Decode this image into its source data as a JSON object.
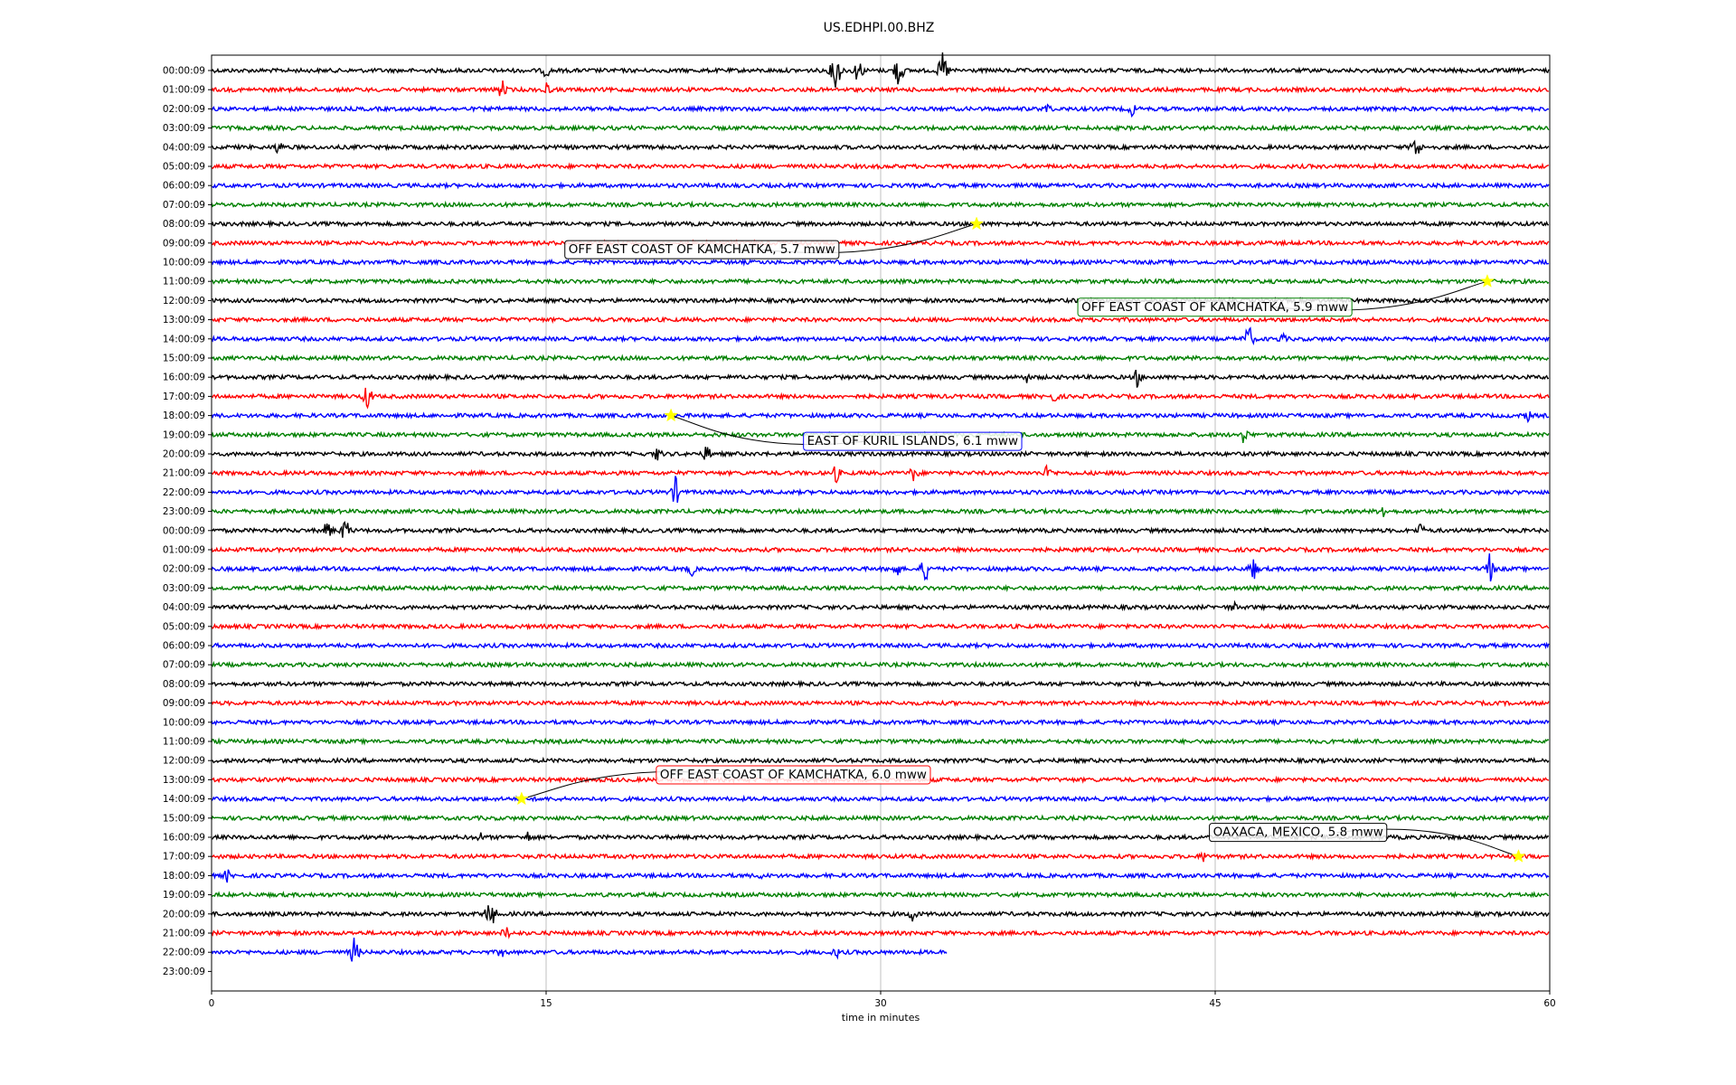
{
  "chart_data": {
    "type": "line",
    "title": "US.EDHPI.00.BHZ",
    "xlabel": "time in minutes",
    "ylabel": "",
    "xlim": [
      0,
      60
    ],
    "x_ticks": [
      0,
      15,
      30,
      45,
      60
    ],
    "grid": "vertical lines at x ticks",
    "trace_colors": [
      "#000000",
      "#ff0000",
      "#0000ff",
      "#008000"
    ],
    "rows": [
      "00:00:09",
      "01:00:09",
      "02:00:09",
      "03:00:09",
      "04:00:09",
      "05:00:09",
      "06:00:09",
      "07:00:09",
      "08:00:09",
      "09:00:09",
      "10:00:09",
      "11:00:09",
      "12:00:09",
      "13:00:09",
      "14:00:09",
      "15:00:09",
      "16:00:09",
      "17:00:09",
      "18:00:09",
      "19:00:09",
      "20:00:09",
      "21:00:09",
      "22:00:09",
      "23:00:09",
      "00:00:09",
      "01:00:09",
      "02:00:09",
      "03:00:09",
      "04:00:09",
      "05:00:09",
      "06:00:09",
      "07:00:09",
      "08:00:09",
      "09:00:09",
      "10:00:09",
      "11:00:09",
      "12:00:09",
      "13:00:09",
      "14:00:09",
      "15:00:09",
      "16:00:09",
      "17:00:09",
      "18:00:09",
      "19:00:09",
      "20:00:09",
      "21:00:09",
      "22:00:09",
      "23:00:09"
    ],
    "last_row_with_data": 46,
    "last_row_end_minute": 33,
    "bursts": [
      {
        "row": 0,
        "minute": 28,
        "amp": 1.6
      },
      {
        "row": 0,
        "minute": 29,
        "amp": 1.0
      },
      {
        "row": 0,
        "minute": 30.8,
        "amp": 1.3
      },
      {
        "row": 0,
        "minute": 32.8,
        "amp": 1.4
      },
      {
        "row": 0,
        "minute": 15,
        "amp": 0.6
      },
      {
        "row": 1,
        "minute": 13,
        "amp": 0.8
      },
      {
        "row": 1,
        "minute": 15,
        "amp": 0.6
      },
      {
        "row": 2,
        "minute": 37.5,
        "amp": 0.5
      },
      {
        "row": 2,
        "minute": 41.3,
        "amp": 0.6
      },
      {
        "row": 4,
        "minute": 3,
        "amp": 0.6
      },
      {
        "row": 4,
        "minute": 54,
        "amp": 1.0
      },
      {
        "row": 14,
        "minute": 46.5,
        "amp": 1.1
      },
      {
        "row": 14,
        "minute": 48,
        "amp": 0.5
      },
      {
        "row": 16,
        "minute": 36.5,
        "amp": 0.5
      },
      {
        "row": 16,
        "minute": 41.5,
        "amp": 0.7
      },
      {
        "row": 17,
        "minute": 7,
        "amp": 1.0
      },
      {
        "row": 17,
        "minute": 37.8,
        "amp": 0.5
      },
      {
        "row": 18,
        "minute": 59,
        "amp": 0.5
      },
      {
        "row": 19,
        "minute": 46.3,
        "amp": 0.7
      },
      {
        "row": 20,
        "minute": 20,
        "amp": 0.6
      },
      {
        "row": 20,
        "minute": 22.2,
        "amp": 0.7
      },
      {
        "row": 21,
        "minute": 28,
        "amp": 0.7
      },
      {
        "row": 21,
        "minute": 31.5,
        "amp": 0.7
      },
      {
        "row": 21,
        "minute": 37.5,
        "amp": 0.7
      },
      {
        "row": 22,
        "minute": 20.8,
        "amp": 1.1
      },
      {
        "row": 23,
        "minute": 52.5,
        "amp": 0.6
      },
      {
        "row": 24,
        "minute": 5.2,
        "amp": 0.8
      },
      {
        "row": 24,
        "minute": 6,
        "amp": 1.0
      },
      {
        "row": 24,
        "minute": 54.2,
        "amp": 0.6
      },
      {
        "row": 26,
        "minute": 21.5,
        "amp": 0.6
      },
      {
        "row": 26,
        "minute": 30.7,
        "amp": 0.7
      },
      {
        "row": 26,
        "minute": 32,
        "amp": 1.0
      },
      {
        "row": 26,
        "minute": 46.7,
        "amp": 0.9
      },
      {
        "row": 26,
        "minute": 57.3,
        "amp": 1.1
      },
      {
        "row": 28,
        "minute": 45.8,
        "amp": 0.5
      },
      {
        "row": 40,
        "minute": 12,
        "amp": 0.5
      },
      {
        "row": 40,
        "minute": 14.2,
        "amp": 0.5
      },
      {
        "row": 41,
        "minute": 44.5,
        "amp": 0.5
      },
      {
        "row": 42,
        "minute": 0.7,
        "amp": 0.5
      },
      {
        "row": 42,
        "minute": 24.7,
        "amp": 0.4
      },
      {
        "row": 44,
        "minute": 12.5,
        "amp": 1.3
      },
      {
        "row": 44,
        "minute": 31.4,
        "amp": 0.7
      },
      {
        "row": 45,
        "minute": 13.2,
        "amp": 0.6
      },
      {
        "row": 46,
        "minute": 6.4,
        "amp": 1.1
      },
      {
        "row": 46,
        "minute": 13,
        "amp": 0.5
      },
      {
        "row": 46,
        "minute": 28,
        "amp": 0.5
      }
    ],
    "events": [
      {
        "label": "OFF EAST COAST OF KAMCHATKA, 5.7 mww",
        "row": 8,
        "minute": 34.3,
        "label_x": 15.8,
        "label_row": 9.3,
        "box_color": "#000000"
      },
      {
        "label": "OFF EAST COAST OF KAMCHATKA, 5.9 mww",
        "row": 11,
        "minute": 57.2,
        "label_x": 38.8,
        "label_row": 12.3,
        "box_color": "#008000"
      },
      {
        "label": "EAST OF KURIL ISLANDS, 6.1 mww",
        "row": 18,
        "minute": 20.6,
        "label_x": 26.5,
        "label_row": 19.3,
        "box_color": "#0000ff"
      },
      {
        "label": "OFF EAST COAST OF KAMCHATKA, 6.0 mww",
        "row": 38,
        "minute": 13.9,
        "label_x": 19.9,
        "label_row": 36.7,
        "box_color": "#ff0000"
      },
      {
        "label": "OAXACA, MEXICO, 5.8 mww",
        "row": 41,
        "minute": 58.6,
        "label_x": 44.7,
        "label_row": 39.7,
        "box_color": "#000000"
      }
    ]
  }
}
